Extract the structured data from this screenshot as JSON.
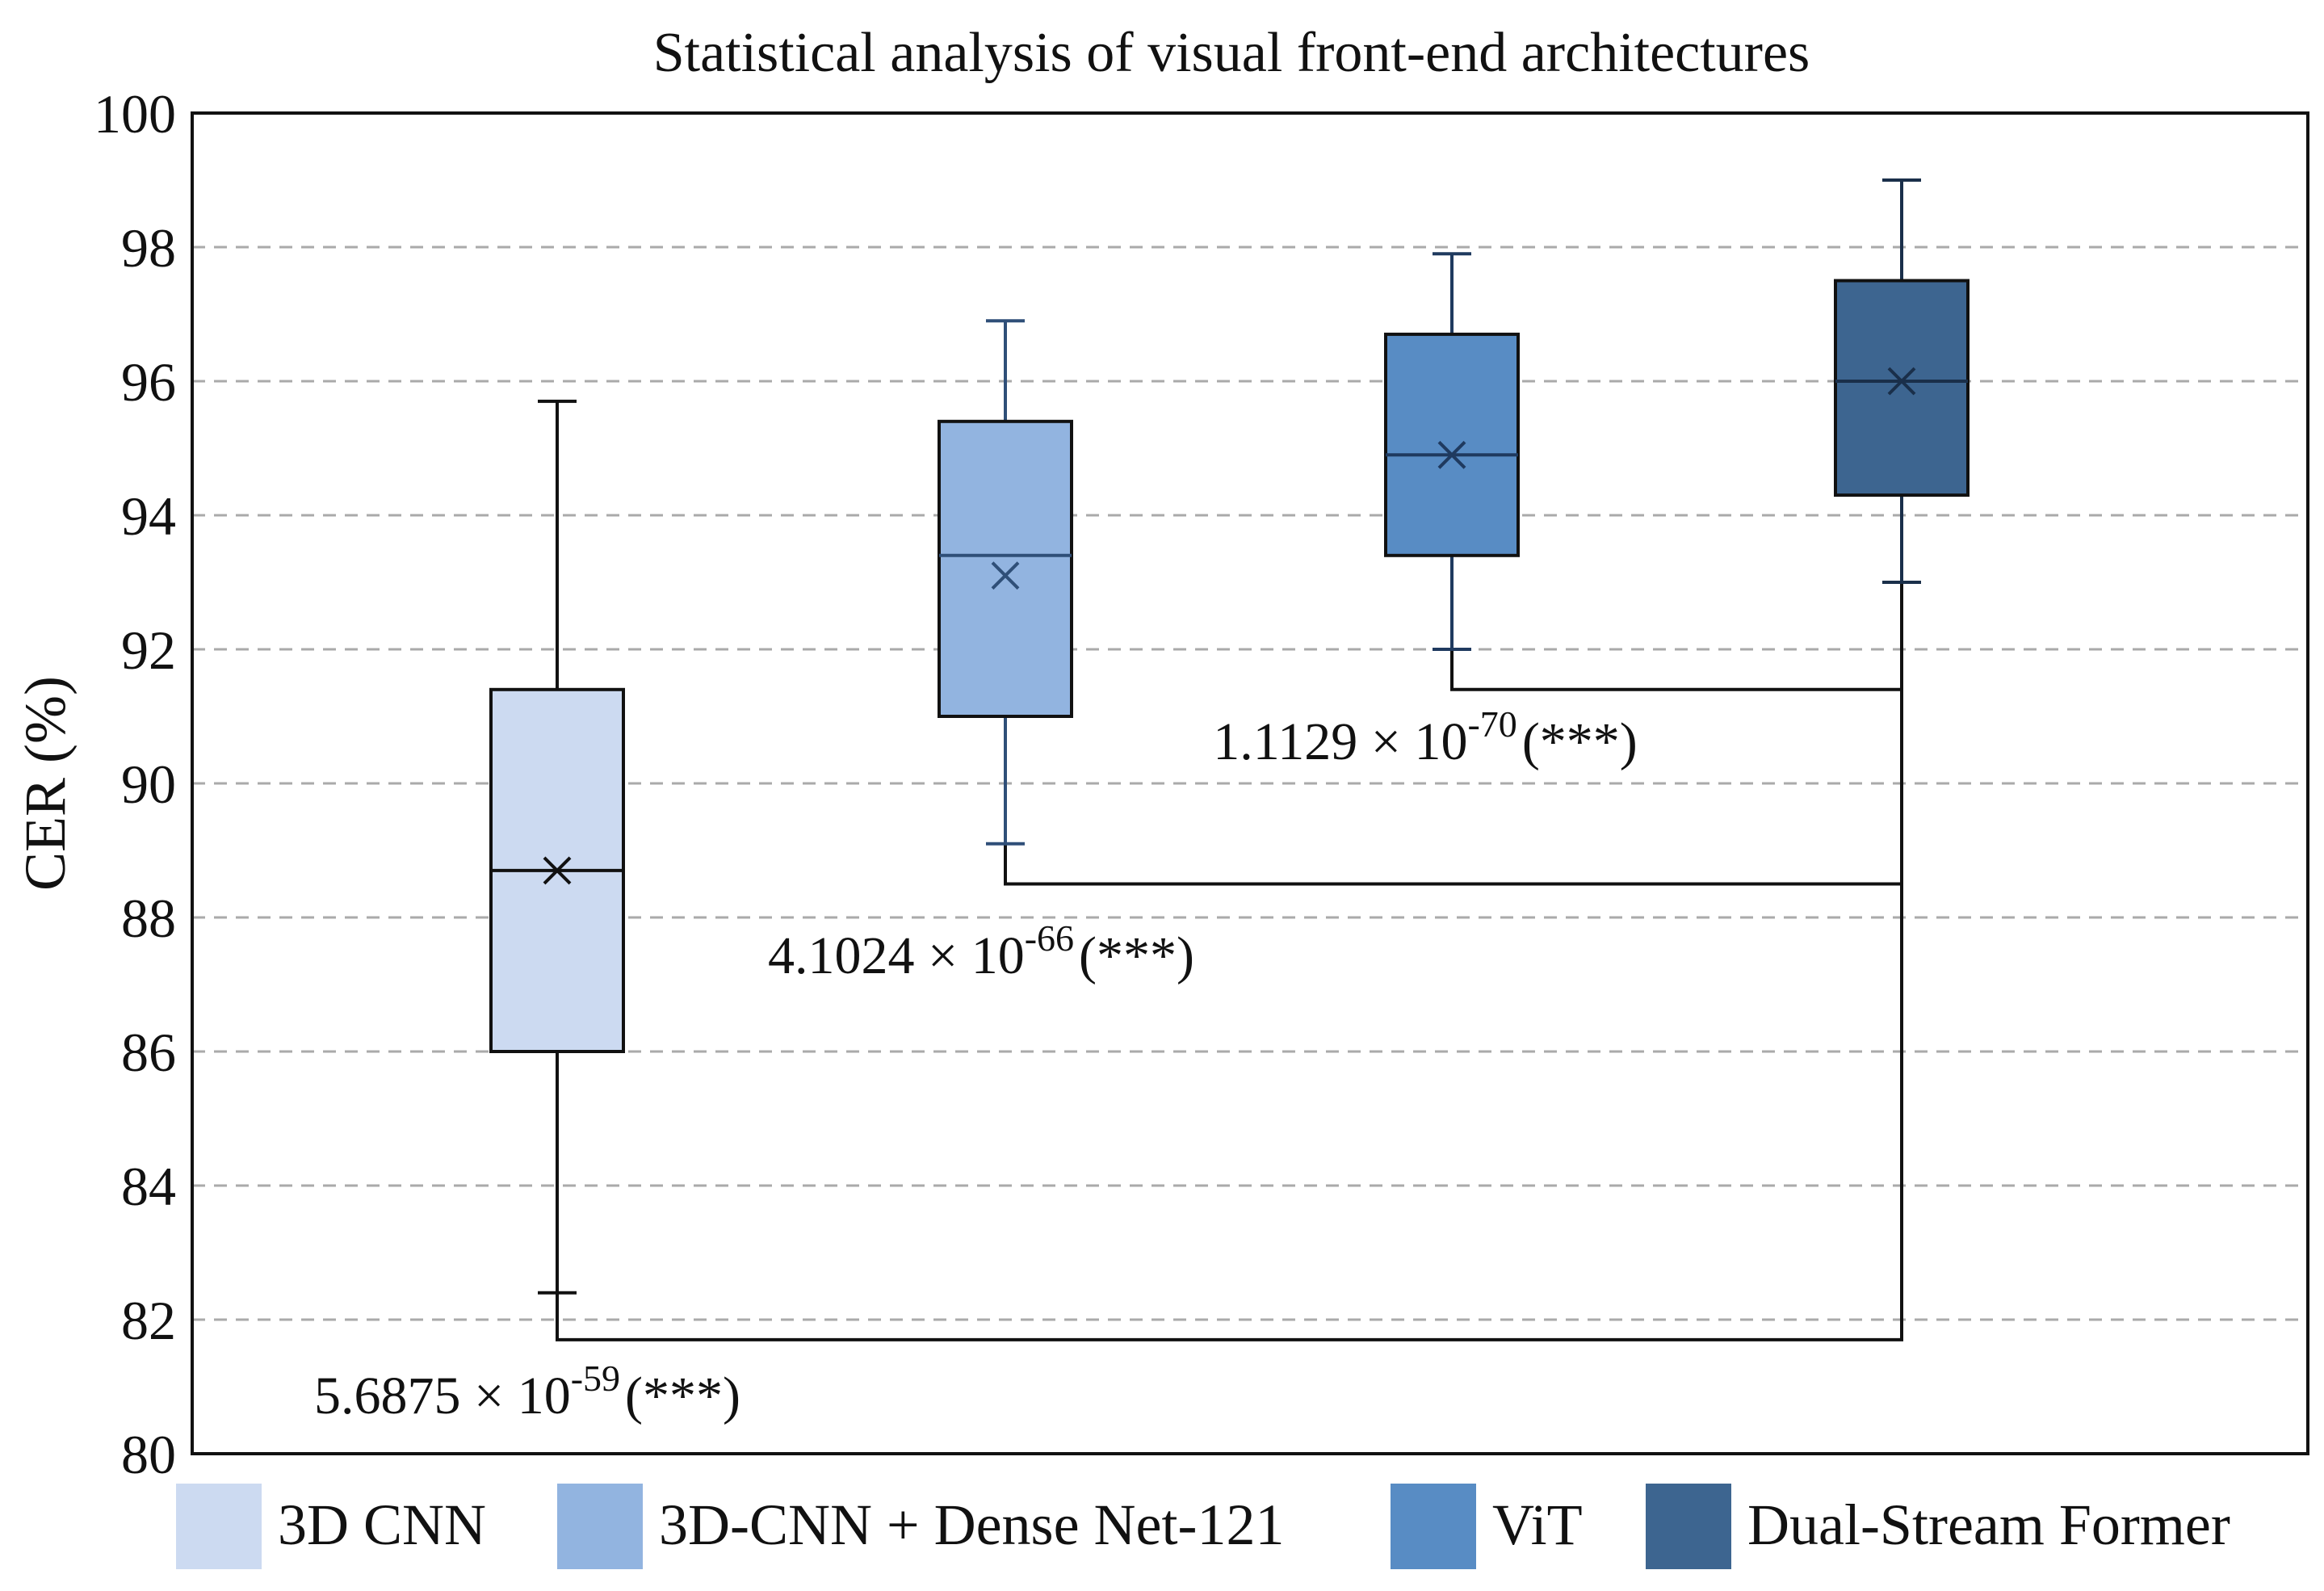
{
  "chart_data": {
    "type": "box",
    "title": "Statistical analysis of visual front-end architectures",
    "xlabel": "",
    "ylabel": "CER (%)",
    "ylim": [
      80,
      100
    ],
    "yticks": [
      80,
      82,
      84,
      86,
      88,
      90,
      92,
      94,
      96,
      98,
      100
    ],
    "grid": "horizontal dashed",
    "series": [
      {
        "name": "3D CNN",
        "whisker_low": 82.4,
        "q1": 86.0,
        "median": 88.7,
        "mean": 88.7,
        "q3": 91.4,
        "whisker_high": 95.7,
        "color": "#ccdaf1",
        "line_color": "#111111"
      },
      {
        "name": "3D-CNN + Dense Net-121",
        "whisker_low": 89.1,
        "q1": 91.0,
        "median": 93.4,
        "mean": 93.1,
        "q3": 95.4,
        "whisker_high": 96.9,
        "color": "#92b4e0",
        "line_color": "#2f4f78"
      },
      {
        "name": "ViT",
        "whisker_low": 92.0,
        "q1": 93.4,
        "median": 94.9,
        "mean": 94.9,
        "q3": 96.7,
        "whisker_high": 97.9,
        "color": "#588cc4",
        "line_color": "#1f3a5f"
      },
      {
        "name": "Dual-Stream Former",
        "whisker_low": 93.0,
        "q1": 94.3,
        "median": 96.0,
        "mean": 96.0,
        "q3": 97.5,
        "whisker_high": 99.0,
        "color": "#3d6590",
        "line_color": "#1a2f4a"
      }
    ],
    "comparisons": [
      {
        "from": "ViT",
        "to": "Dual-Stream Former",
        "bracket_y": 91.4,
        "mantissa": "1.1129 × 10",
        "exponent": "-70",
        "significance": "(***)"
      },
      {
        "from": "3D-CNN + Dense Net-121",
        "to": "Dual-Stream Former",
        "bracket_y": 88.5,
        "mantissa": "4.1024 × 10",
        "exponent": "-66",
        "significance": "(***)"
      },
      {
        "from": "3D CNN",
        "to": "Dual-Stream Former",
        "bracket_y": 81.7,
        "mantissa": "5.6875 × 10",
        "exponent": "-59",
        "significance": "(***)"
      }
    ],
    "legend": "bottom"
  }
}
